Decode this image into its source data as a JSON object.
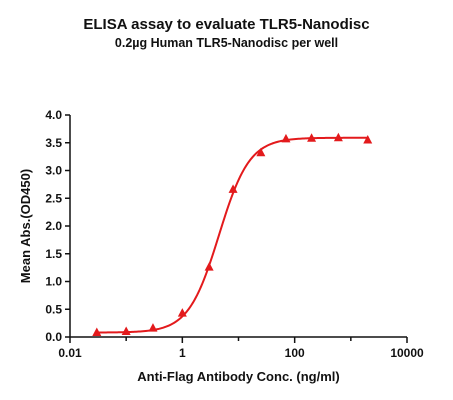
{
  "chart_data": {
    "type": "scatter",
    "title": "ELISA assay to evaluate TLR5-Nanodisc",
    "subtitle": "0.2µg Human TLR5-Nanodisc per well",
    "xlabel": "Anti-Flag Antibody Conc. (ng/ml)",
    "ylabel": "Mean Abs.(OD450)",
    "xscale": "log",
    "xlim": [
      0.01,
      10000
    ],
    "ylim": [
      0.0,
      4.0
    ],
    "x_ticks": [
      0.01,
      1,
      100,
      10000
    ],
    "x_tick_labels": [
      "0.01",
      "1",
      "100",
      "10000"
    ],
    "y_ticks": [
      0.0,
      0.5,
      1.0,
      1.5,
      2.0,
      2.5,
      3.0,
      3.5,
      4.0
    ],
    "y_tick_labels": [
      "0.0",
      "0.5",
      "1.0",
      "1.5",
      "2.0",
      "2.5",
      "3.0",
      "3.5",
      "4.0"
    ],
    "grid": false,
    "legend": "none",
    "series": [
      {
        "marker": "triangle",
        "color": "#e31a1c",
        "fit": "sigmoidal",
        "x": [
          0.03,
          0.1,
          0.3,
          1,
          3,
          8,
          25,
          70,
          200,
          600,
          2000
        ],
        "y": [
          0.08,
          0.1,
          0.16,
          0.43,
          1.26,
          2.66,
          3.32,
          3.57,
          3.58,
          3.59,
          3.55
        ]
      }
    ]
  }
}
